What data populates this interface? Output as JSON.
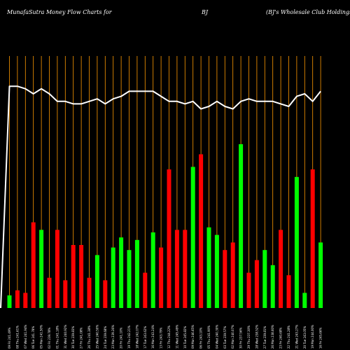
{
  "header": {
    "site_title": "MunafaSutra  Money Flow  Charts for",
    "symbol": "BJ",
    "company": "(BJ's Wholesale   Club Holdings,  In"
  },
  "colors": {
    "background": "#000000",
    "grid": "#ff9900",
    "up": "#00ff00",
    "down": "#ff0000",
    "line": "#ffffff"
  },
  "chart_data": {
    "type": "bar",
    "grid": true,
    "ylim": [
      0,
      100
    ],
    "categories": [
      "09 Fri 241.49%",
      "08 Thu 241.61%",
      "07 Wed 241.94%",
      "06 Tue 241.78%",
      "05 Mon 241.50%",
      "02 Fri 239.78%",
      "01 Thu 241.18%",
      "31 Wed 240.92%",
      "30 Tue 239.83%",
      "27 Fri 241.08%",
      "26 Thu 241.38%",
      "25 Wed 240.50%",
      "24 Tue 239.68%",
      "23 Mon 239.26%",
      "20 Fri 241.10%",
      "19 Thu 242.21%",
      "18 Wed 242.07%",
      "17 Tue 243.62%",
      "16 Mon 243.24%",
      "13 Fri 243.79%",
      "12 Thu 244.22%",
      "11 Wed 245.49%",
      "10 Tue 245.82%",
      "09 Mon 246.65%",
      "06 Fri 243.10%",
      "05 Thu 241.90%",
      "04 Wed 240.30%",
      "03 Tue 239.57%",
      "02 Mon 240.07%",
      "30 Fri 237.56%",
      "29 Thu 237.30%",
      "28 Wed 238.52%",
      "27 Tue 239.81%",
      "26 Mon 238.60%",
      "23 Fri 240.68%",
      "22 Thu 241.28%",
      "21 Wed 243.27%",
      "20 Tue 243.05%",
      "19 Mon 244.00%",
      "16 Fri 245.66%"
    ],
    "series": [
      {
        "kind": "bars",
        "values": [
          5,
          7,
          6,
          34,
          31,
          12,
          31,
          11,
          25,
          25,
          12,
          21,
          11,
          24,
          28,
          23,
          27,
          14,
          30,
          24,
          55,
          31,
          31,
          56,
          61,
          32,
          29,
          23,
          26,
          65,
          14,
          19,
          23,
          17,
          31,
          13,
          52,
          6,
          55,
          26
        ],
        "direction": [
          "up",
          "down",
          "down",
          "down",
          "up",
          "down",
          "down",
          "down",
          "down",
          "down",
          "down",
          "up",
          "down",
          "up",
          "up",
          "up",
          "up",
          "down",
          "up",
          "down",
          "down",
          "down",
          "down",
          "up",
          "down",
          "up",
          "up",
          "down",
          "down",
          "up",
          "down",
          "down",
          "up",
          "up",
          "down",
          "down",
          "up",
          "up",
          "down",
          "up"
        ]
      },
      {
        "kind": "line",
        "values": [
          88,
          88,
          87,
          85,
          87,
          85,
          82,
          82,
          81,
          81,
          82,
          83,
          81,
          83,
          84,
          86,
          86,
          86,
          86,
          84,
          82,
          82,
          81,
          82,
          79,
          80,
          82,
          80,
          79,
          82,
          83,
          82,
          82,
          82,
          81,
          80,
          84,
          85,
          82,
          86
        ],
        "start": 0
      }
    ]
  }
}
